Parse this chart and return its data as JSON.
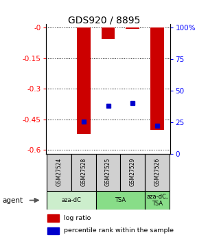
{
  "title": "GDS920 / 8895",
  "samples": [
    "GSM27524",
    "GSM27528",
    "GSM27525",
    "GSM27529",
    "GSM27526"
  ],
  "log_ratios": [
    0.0,
    -0.52,
    -0.055,
    -0.005,
    -0.5
  ],
  "percentile_ranks": [
    null,
    25,
    37,
    39,
    22
  ],
  "agent_groups": [
    {
      "label": "aza-dC",
      "samples": [
        "GSM27524",
        "GSM27528"
      ],
      "color": "#cceecc"
    },
    {
      "label": "TSA",
      "samples": [
        "GSM27525",
        "GSM27529"
      ],
      "color": "#88dd88"
    },
    {
      "label": "aza-dC,\nTSA",
      "samples": [
        "GSM27526"
      ],
      "color": "#88dd88"
    }
  ],
  "ylim_left": [
    -0.62,
    0.02
  ],
  "ylim_right": [
    0,
    103.125
  ],
  "yticks_left": [
    0,
    -0.15,
    -0.3,
    -0.45,
    -0.6
  ],
  "ytick_labels_left": [
    "-0",
    "-0.15",
    "-0.3",
    "-0.45",
    "-0.6"
  ],
  "yticks_right": [
    0,
    25,
    50,
    75,
    100
  ],
  "ytick_labels_right": [
    "0",
    "25",
    "50",
    "75",
    "100%"
  ],
  "bar_color": "#cc0000",
  "dot_color": "#0000cc",
  "bar_width": 0.55,
  "bg_color": "#ffffff"
}
